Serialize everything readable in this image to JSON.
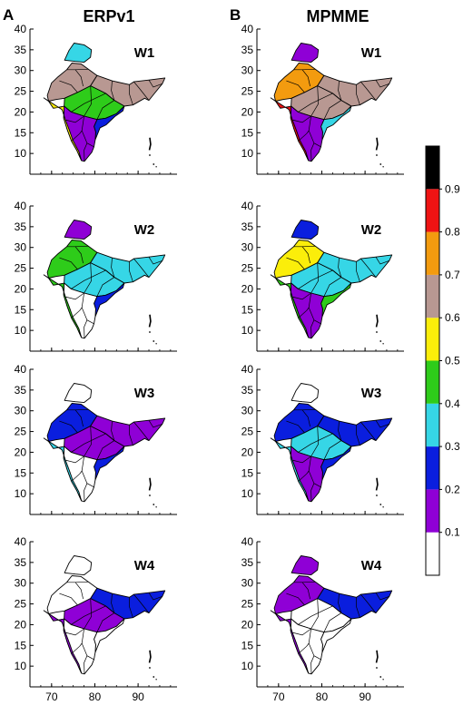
{
  "figure": {
    "panel_labels": [
      "A",
      "B"
    ],
    "column_titles": [
      "ERPv1",
      "MPMME"
    ],
    "week_labels": [
      "W1",
      "W2",
      "W3",
      "W4"
    ],
    "y_ticks": [
      "10",
      "15",
      "20",
      "25",
      "30",
      "35",
      "40"
    ],
    "x_ticks": [
      "70",
      "80",
      "90"
    ]
  },
  "colorbar": {
    "ticks": [
      "0.1",
      "0.2",
      "0.3",
      "0.4",
      "0.5",
      "0.6",
      "0.7",
      "0.8",
      "0.9"
    ],
    "bins": [
      {
        "range": [
          0.0,
          0.1
        ],
        "color": "#ffffff"
      },
      {
        "range": [
          0.1,
          0.2
        ],
        "color": "#8f00d6"
      },
      {
        "range": [
          0.2,
          0.3
        ],
        "color": "#0a1ede"
      },
      {
        "range": [
          0.3,
          0.4
        ],
        "color": "#36d6e6"
      },
      {
        "range": [
          0.4,
          0.5
        ],
        "color": "#2ecc1a"
      },
      {
        "range": [
          0.5,
          0.6
        ],
        "color": "#fbee0a"
      },
      {
        "range": [
          0.6,
          0.7
        ],
        "color": "#b89892"
      },
      {
        "range": [
          0.7,
          0.8
        ],
        "color": "#f39b0f"
      },
      {
        "range": [
          0.8,
          0.9
        ],
        "color": "#ef1313"
      },
      {
        "range": [
          0.9,
          1.0
        ],
        "color": "#000000"
      }
    ]
  },
  "map_data": {
    "region": "India (meteorological subdivisions)",
    "axes": {
      "x_range": [
        65,
        99
      ],
      "y_range": [
        5,
        40
      ],
      "x_ticks": [
        70,
        80,
        90
      ],
      "y_ticks": [
        10,
        15,
        20,
        25,
        30,
        35,
        40
      ]
    },
    "panels": [
      {
        "column": "ERPv1",
        "week": "W1",
        "fill": {
          "north": "#36d6e6",
          "northwest": "#b89892",
          "central": "#2ecc1a",
          "east": "#b89892",
          "westcoast": "#fbee0a",
          "south": "#8f00d6",
          "southeast": "#0a1ede"
        }
      },
      {
        "column": "MPMME",
        "week": "W1",
        "fill": {
          "north": "#8f00d6",
          "northwest": "#f39b0f",
          "central": "#b89892",
          "east": "#b89892",
          "westcoast": "#ef1313",
          "south": "#8f00d6",
          "southeast": "#36d6e6"
        }
      },
      {
        "column": "ERPv1",
        "week": "W2",
        "fill": {
          "north": "#8f00d6",
          "northwest": "#2ecc1a",
          "central": "#36d6e6",
          "east": "#36d6e6",
          "westcoast": "#2ecc1a",
          "south": "#ffffff",
          "southeast": "#0a1ede"
        }
      },
      {
        "column": "MPMME",
        "week": "W2",
        "fill": {
          "north": "#0a1ede",
          "northwest": "#fbee0a",
          "central": "#36d6e6",
          "east": "#36d6e6",
          "westcoast": "#2ecc1a",
          "south": "#8f00d6",
          "southeast": "#2ecc1a"
        }
      },
      {
        "column": "ERPv1",
        "week": "W3",
        "fill": {
          "north": "#ffffff",
          "northwest": "#0a1ede",
          "central": "#8f00d6",
          "east": "#8f00d6",
          "westcoast": "#36d6e6",
          "south": "#ffffff",
          "southeast": "#0a1ede"
        }
      },
      {
        "column": "MPMME",
        "week": "W3",
        "fill": {
          "north": "#ffffff",
          "northwest": "#0a1ede",
          "central": "#36d6e6",
          "east": "#0a1ede",
          "westcoast": "#36d6e6",
          "south": "#8f00d6",
          "southeast": "#0a1ede"
        }
      },
      {
        "column": "ERPv1",
        "week": "W4",
        "fill": {
          "north": "#ffffff",
          "northwest": "#ffffff",
          "central": "#8f00d6",
          "east": "#0a1ede",
          "westcoast": "#8f00d6",
          "south": "#ffffff",
          "southeast": "#ffffff"
        }
      },
      {
        "column": "MPMME",
        "week": "W4",
        "fill": {
          "north": "#8f00d6",
          "northwest": "#8f00d6",
          "central": "#ffffff",
          "east": "#0a1ede",
          "westcoast": "#8f00d6",
          "south": "#ffffff",
          "southeast": "#ffffff"
        }
      }
    ]
  }
}
